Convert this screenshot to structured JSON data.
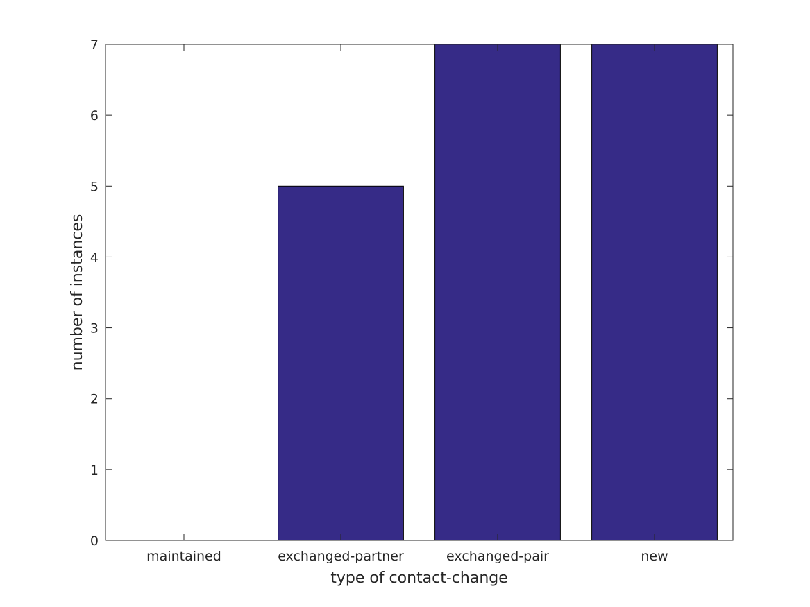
{
  "chart_data": {
    "type": "bar",
    "categories": [
      "maintained",
      "exchanged-partner",
      "exchanged-pair",
      "new"
    ],
    "values": [
      0,
      5,
      7,
      7
    ],
    "title": "",
    "xlabel": "type of contact-change",
    "ylabel": "number of instances",
    "ylim": [
      0,
      7
    ],
    "yticks": [
      "0",
      "1",
      "2",
      "3",
      "4",
      "5",
      "6",
      "7"
    ],
    "grid": false,
    "bar_color": "#362b87",
    "bar_edge_color": "#000000"
  }
}
